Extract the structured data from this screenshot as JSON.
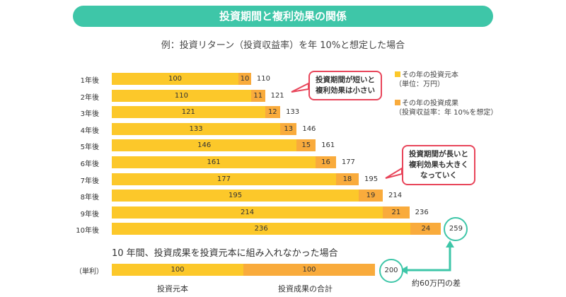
{
  "chart_data": {
    "type": "bar",
    "stacked": true,
    "title": "投資期間と複利効果の関係",
    "subtitle": "例：投資リターン（投資収益率）を年 10%と想定した場合",
    "categories": [
      "1年後",
      "2年後",
      "3年後",
      "4年後",
      "5年後",
      "6年後",
      "7年後",
      "8年後",
      "9年後",
      "10年後"
    ],
    "series": [
      {
        "name": "その年の投資元本",
        "note": "（単位：万円）",
        "color": "#fcc82a",
        "values": [
          100,
          110,
          121,
          133,
          146,
          161,
          177,
          195,
          214,
          236
        ]
      },
      {
        "name": "その年の投資成果",
        "note": "（投資収益率：年 10%を想定）",
        "color": "#f9ab3c",
        "values": [
          10,
          11,
          12,
          13,
          15,
          16,
          18,
          19,
          21,
          24
        ]
      }
    ],
    "totals": [
      110,
      121,
      133,
      146,
      161,
      177,
      195,
      214,
      236,
      259
    ],
    "callouts": [
      {
        "lines": [
          "投資期間が短いと",
          "複利効果は小さい"
        ]
      },
      {
        "lines": [
          "投資期間が長いと",
          "複利効果も大きく",
          "なっていく"
        ]
      }
    ],
    "simple": {
      "heading": "10 年間、投資成果を投資元本に組み入れなかった場合",
      "label": "（単利）",
      "values": [
        100,
        100
      ],
      "total": 200,
      "captions": [
        "投資元本",
        "投資成果の合計"
      ]
    },
    "difference_label": "約60万円の差"
  }
}
